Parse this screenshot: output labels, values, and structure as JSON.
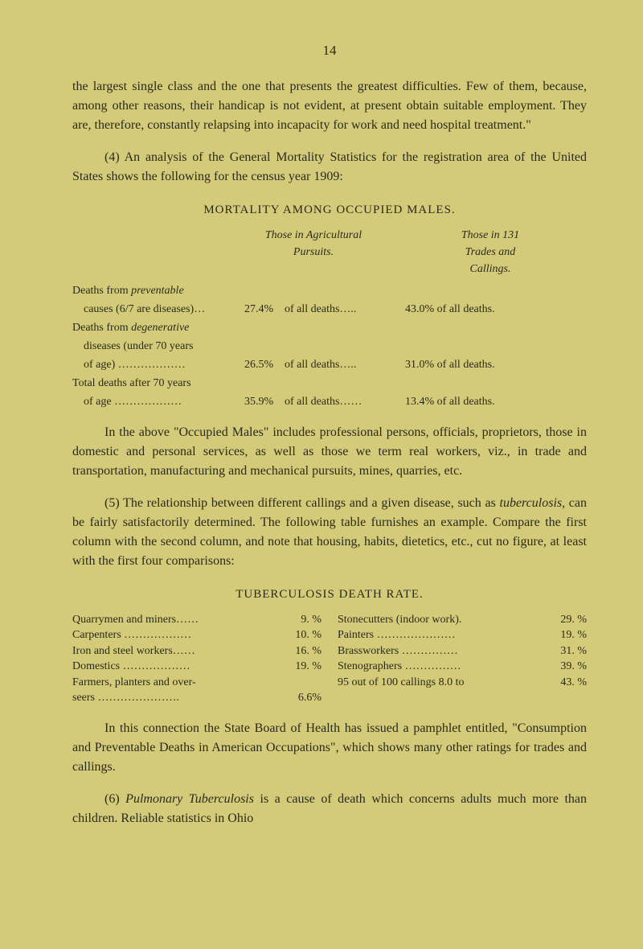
{
  "pageNum": "14",
  "para1": "the largest single class and the one that presents the greatest difficulties. Few of them, because, among other reasons, their handicap is not evident, at present obtain suitable employment. They are, therefore, constantly relapsing into incapacity for work and need hospital treatment.\"",
  "para2": "(4) An analysis of the General Mortality Statistics for the registration area of the United States shows the following for the census year 1909:",
  "mortalityTitle": "MORTALITY AMONG OCCUPIED MALES.",
  "headerCol2a": "Those in Agricultural",
  "headerCol2b": "Pursuits.",
  "headerCol3a": "Those in 131",
  "headerCol3b": "Trades and",
  "headerCol3c": "Callings.",
  "mortality": {
    "row1": {
      "label1": "Deaths from ",
      "label1i": "preventable",
      "label2": "causes (6/7 are diseases)…",
      "pct": "27.4%",
      "mid": "of all deaths…..",
      "right": "43.0% of all deaths."
    },
    "row2": {
      "label1": "Deaths from ",
      "label1i": "degenerative",
      "label2": "diseases (under 70 years",
      "label3": "of age) ………………",
      "pct": "26.5%",
      "mid": "of all deaths…..",
      "right": "31.0% of all deaths."
    },
    "row3": {
      "label1": "Total deaths after 70 years",
      "label2": "of age ………………",
      "pct": "35.9%",
      "mid": "of all deaths……",
      "right": "13.4% of all deaths."
    }
  },
  "para3": "In the above \"Occupied Males\" includes professional persons, officials, proprietors, those in domestic and personal services, as well as those we term real workers, viz., in trade and transportation, manufacturing and mechanical pursuits, mines, quarries, etc.",
  "para4a": "(5) The relationship between different callings and a given disease, such as ",
  "para4i": "tuberculosis,",
  "para4b": " can be fairly satisfactorily determined. The following table furnishes an example. Compare the first column with the second column, and note that housing, habits, dietetics, etc., cut no figure, at least with the first four comparisons:",
  "tbTitle": "TUBERCULOSIS DEATH RATE.",
  "tb": {
    "left": [
      {
        "name": "Quarrymen and miners……",
        "val": "9. %"
      },
      {
        "name": "Carpenters ………………",
        "val": "10. %"
      },
      {
        "name": "Iron and steel workers……",
        "val": "16. %"
      },
      {
        "name": "Domestics ………………",
        "val": "19. %"
      },
      {
        "name": "Farmers, planters and over-",
        "val": ""
      },
      {
        "name": "  seers ………………….",
        "val": "6.6%"
      }
    ],
    "right": [
      {
        "name": "Stonecutters (indoor work).",
        "val": "29. %"
      },
      {
        "name": "Painters …………………",
        "val": "19. %"
      },
      {
        "name": "Brassworkers ……………",
        "val": "31. %"
      },
      {
        "name": "Stenographers ……………",
        "val": "39. %"
      },
      {
        "name": "95 out of 100 callings 8.0 to",
        "val": "43. %"
      }
    ]
  },
  "para5": "In this connection the State Board of Health has issued a pamphlet entitled, \"Consumption and Preventable Deaths in American Occupations\", which shows many other ratings for trades and callings.",
  "para6a": "(6) ",
  "para6i": "Pulmonary Tuberculosis",
  "para6b": " is a cause of death which concerns adults much more than children. Reliable statistics in Ohio"
}
